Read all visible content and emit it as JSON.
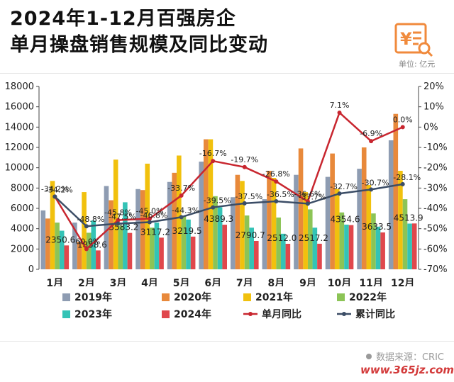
{
  "title": {
    "line1": "2024年1-12月百强房企",
    "line2": "单月操盘销售规模及同比变动"
  },
  "unit_label": "单位: 亿元",
  "logo_icon": "yuan-document-search-icon",
  "source": "数据来源：CRIC",
  "watermark": "www.365jz.com",
  "chart_data": {
    "type": "bar",
    "categories": [
      "1月",
      "2月",
      "3月",
      "4月",
      "5月",
      "6月",
      "7月",
      "8月",
      "9月",
      "10月",
      "11月",
      "12月"
    ],
    "ylim": [
      0,
      18000
    ],
    "y_ticks": [
      "0",
      "2000",
      "4000",
      "6000",
      "8000",
      "10000",
      "12000",
      "14000",
      "16000",
      "18000"
    ],
    "y2lim": [
      -70,
      20
    ],
    "y2_ticks": [
      "-70%",
      "-60%",
      "-50%",
      "-40%",
      "-30%",
      "-20%",
      "-10%",
      "0%",
      "10%",
      "20%"
    ],
    "series": [
      {
        "name": "2019年",
        "color": "#8e9cb2",
        "values": [
          5800,
          4600,
          8200,
          7900,
          8600,
          10600,
          7100,
          6900,
          9300,
          9100,
          9900,
          12700
        ]
      },
      {
        "name": "2020年",
        "color": "#e8893b",
        "values": [
          5000,
          2700,
          6800,
          7800,
          9500,
          12800,
          9300,
          9700,
          11900,
          11400,
          12000,
          15300
        ]
      },
      {
        "name": "2021年",
        "color": "#f1c10e",
        "values": [
          8700,
          7600,
          10800,
          10400,
          11200,
          12800,
          8700,
          9000,
          7600,
          7900,
          8300,
          9700
        ]
      },
      {
        "name": "2022年",
        "color": "#8cc456",
        "values": [
          4600,
          3600,
          4300,
          4100,
          5200,
          7200,
          5300,
          5100,
          5900,
          5600,
          5500,
          6900
        ]
      },
      {
        "name": "2023年",
        "color": "#34c3b6",
        "values": [
          3800,
          4800,
          6600,
          4600,
          4900,
          6100,
          4100,
          3500,
          4100,
          4400,
          4200,
          4500
        ]
      },
      {
        "name": "2024年",
        "color": "#e0474c",
        "values": [
          2350.6,
          1858.6,
          3583.2,
          3117.2,
          3219.5,
          4389.3,
          2790.7,
          2512.0,
          2517.2,
          4354.6,
          3633.5,
          4513.9
        ]
      }
    ],
    "bar_labels": [
      "2350.6",
      "1858.6",
      "3583.2",
      "3117.2",
      "3219.5",
      "4389.3",
      "2790.7",
      "2512.0",
      "2517.2",
      "4354.6",
      "3633.5",
      "4513.9"
    ],
    "lines": [
      {
        "name": "单月同比",
        "color": "#c8262f",
        "values": [
          -34.2,
          -60.0,
          -45.8,
          -45.0,
          -33.7,
          -16.7,
          -19.7,
          -26.8,
          -36.6,
          7.1,
          -6.9,
          0.0
        ],
        "labels": [
          "-34.2%",
          "-60.0%",
          "-45.8%",
          "-45.0%",
          "-33.7%",
          "-16.7%",
          "-19.7%",
          "-26.8%",
          "-36.6%",
          "7.1%",
          "-6.9%",
          "0.0%"
        ]
      },
      {
        "name": "累计同比",
        "color": "#3b4d66",
        "values": [
          -34.2,
          -48.8,
          -47.5,
          -46.8,
          -44.3,
          -39.5,
          -37.5,
          -36.5,
          -37.7,
          -32.7,
          -30.7,
          -28.1
        ],
        "labels": [
          "-34.2%",
          "-48.8%",
          "-47.5%",
          "-46.8%",
          "-44.3%",
          "-39.5%",
          "-37.5%",
          "-36.5%",
          "-37.7%",
          "-32.7%",
          "-30.7%",
          "-28.1%"
        ]
      }
    ],
    "grid": false,
    "legend_position": "bottom"
  }
}
